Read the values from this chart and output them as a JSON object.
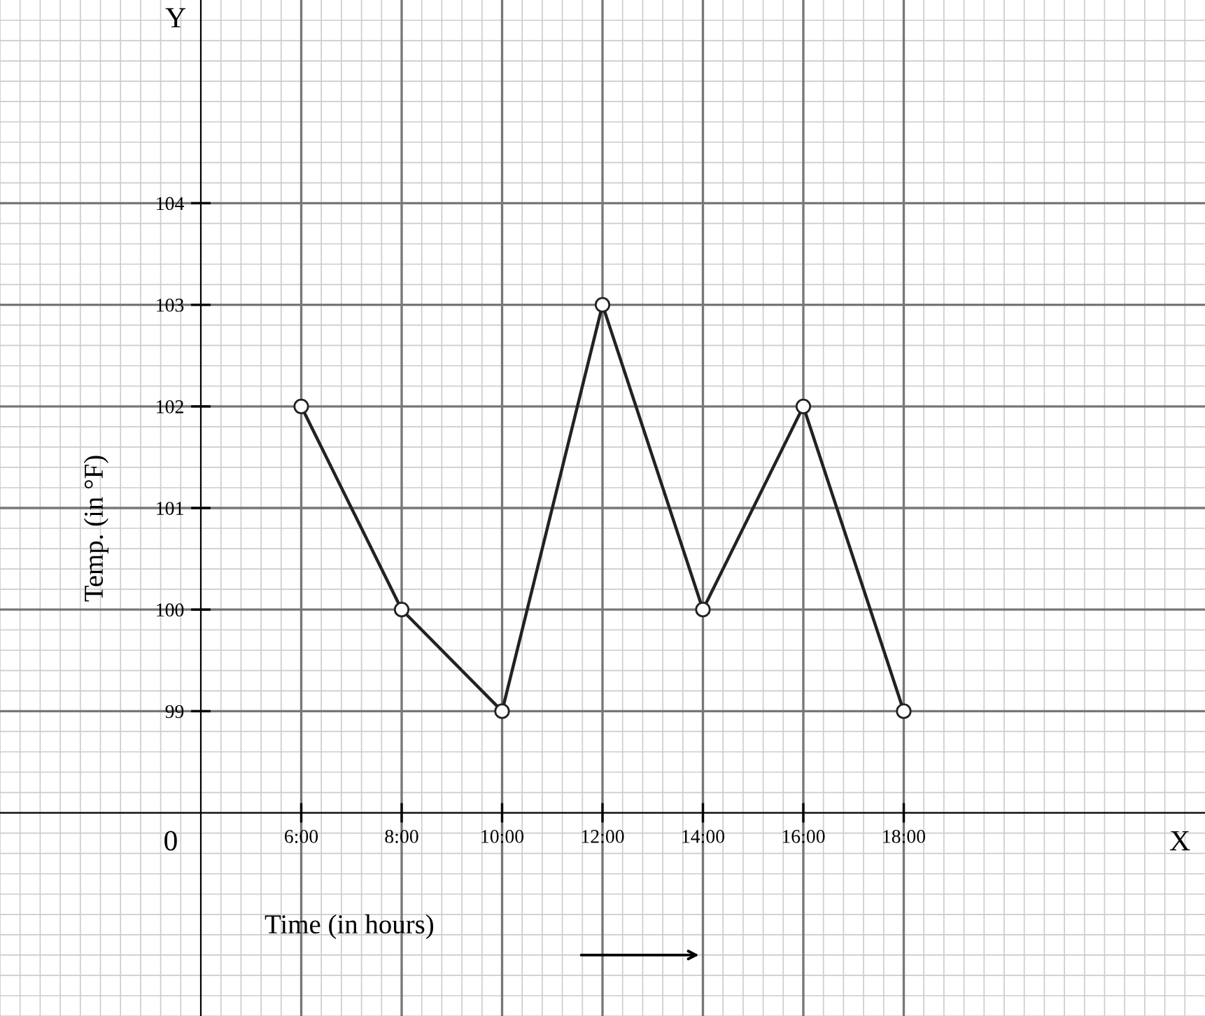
{
  "chart_data": {
    "type": "line",
    "xlabel": "Time (in hours)",
    "ylabel": "Temp. (in °F)",
    "x": [
      6,
      8,
      10,
      12,
      14,
      16,
      18
    ],
    "series": [
      {
        "color": "#222222",
        "values": [
          102,
          100,
          99,
          103,
          100,
          102,
          99
        ]
      }
    ],
    "xlim": [
      0,
      24
    ],
    "ylim": [
      96,
      106
    ],
    "xticks": [
      {
        "value": 6,
        "label": "6:00"
      },
      {
        "value": 8,
        "label": "8:00"
      },
      {
        "value": 10,
        "label": "10:00"
      },
      {
        "value": 12,
        "label": "12:00"
      },
      {
        "value": 14,
        "label": "14:00"
      },
      {
        "value": 16,
        "label": "16:00"
      },
      {
        "value": 18,
        "label": "18:00"
      }
    ],
    "yticks": [
      99,
      100,
      101,
      102,
      103,
      104
    ],
    "annotations": [
      "0",
      "X",
      "Y"
    ],
    "grid": true,
    "marker": "circle",
    "line_style": "solid"
  }
}
